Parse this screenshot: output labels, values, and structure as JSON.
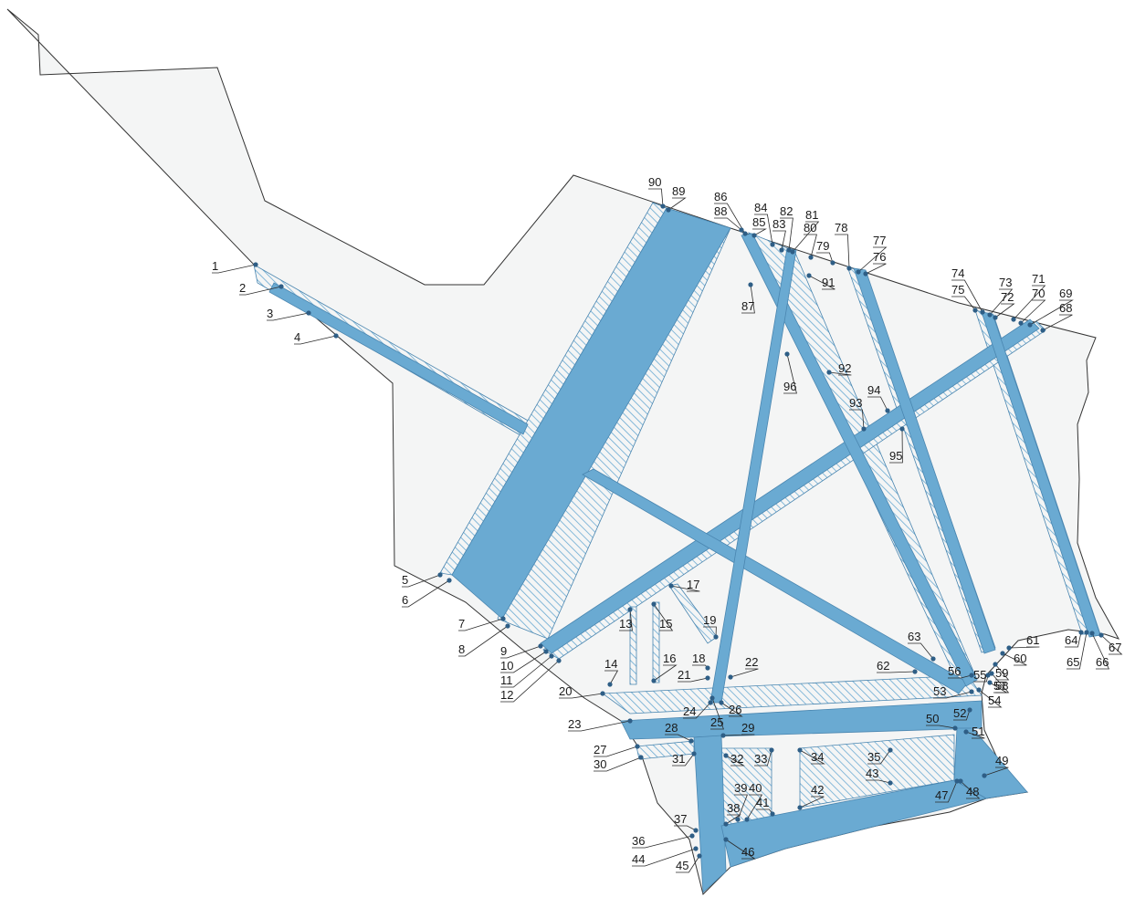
{
  "colors": {
    "background": "#ffffff",
    "territory_fill": "#f4f5f5",
    "outline": "#333333",
    "road": "#6aaad2",
    "road_edge": "#4a86b0",
    "hatch": "#6aaad2",
    "point": "#2e5e86"
  },
  "labels": [
    "1",
    "2",
    "3",
    "4",
    "5",
    "6",
    "7",
    "8",
    "9",
    "10",
    "11",
    "12",
    "13",
    "14",
    "15",
    "16",
    "17",
    "18",
    "19",
    "20",
    "21",
    "22",
    "23",
    "24",
    "25",
    "26",
    "27",
    "28",
    "29",
    "30",
    "31",
    "32",
    "33",
    "34",
    "35",
    "36",
    "37",
    "38",
    "39",
    "40",
    "41",
    "42",
    "43",
    "44",
    "45",
    "46",
    "47",
    "48",
    "49",
    "50",
    "51",
    "52",
    "53",
    "54",
    "55",
    "56",
    "57",
    "58",
    "59",
    "60",
    "61",
    "62",
    "63",
    "64",
    "65",
    "66",
    "67",
    "68",
    "69",
    "70",
    "71",
    "72",
    "73",
    "74",
    "75",
    "76",
    "77",
    "78",
    "79",
    "80",
    "81",
    "82",
    "83",
    "84",
    "85",
    "86",
    "87",
    "88",
    "89",
    "90",
    "91",
    "92",
    "93",
    "94",
    "95",
    "96"
  ]
}
